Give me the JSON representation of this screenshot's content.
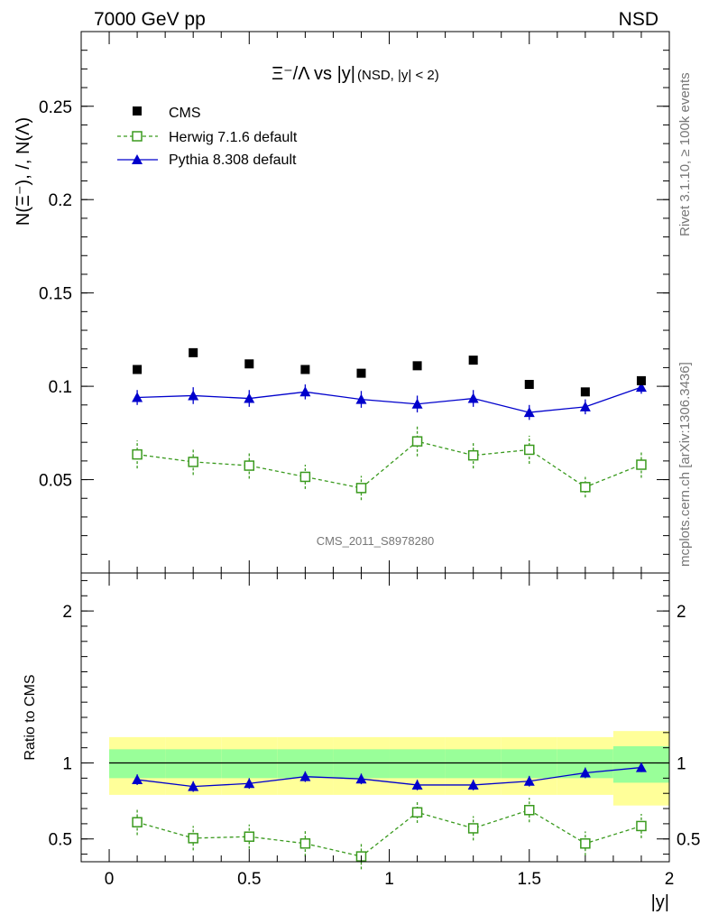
{
  "header": {
    "left": "7000 GeV pp",
    "right": "NSD"
  },
  "side": {
    "rivet": "Rivet 3.1.10, ≥ 100k events",
    "mcplots": "mcplots.cern.ch [arXiv:1306.3436]"
  },
  "watermark": "CMS_2011_S8978280",
  "chart_data": [
    {
      "type": "scatter",
      "title": "Ξ⁻/Λ vs |y|",
      "title_suffix": "(NSD, |y| < 2)",
      "ylabel": "N(Ξ⁻), /, N(Λ)",
      "xlim": [
        -0.1,
        2.0
      ],
      "ylim": [
        0.0,
        0.29
      ],
      "yticks": [
        {
          "v": 0.05,
          "l": "0.05"
        },
        {
          "v": 0.1,
          "l": "0.1"
        },
        {
          "v": 0.15,
          "l": "0.15"
        },
        {
          "v": 0.2,
          "l": "0.2"
        },
        {
          "v": 0.25,
          "l": "0.25"
        }
      ],
      "x": [
        0.1,
        0.3,
        0.5,
        0.7,
        0.9,
        1.1,
        1.3,
        1.5,
        1.7,
        1.9
      ],
      "legend_position": "top-left",
      "series": [
        {
          "name": "CMS",
          "color": "#000000",
          "marker": "square-filled",
          "values": [
            0.109,
            0.118,
            0.112,
            0.109,
            0.107,
            0.111,
            0.114,
            0.101,
            0.097,
            0.103
          ]
        },
        {
          "name": "Herwig 7.1.6 default",
          "color": "#3a9a1e",
          "marker": "square-open",
          "dashed": true,
          "values": [
            0.0635,
            0.0595,
            0.0575,
            0.0515,
            0.0455,
            0.0705,
            0.063,
            0.066,
            0.046,
            0.058
          ],
          "errors": [
            0.0075,
            0.007,
            0.007,
            0.0065,
            0.0065,
            0.008,
            0.007,
            0.0075,
            0.0055,
            0.007
          ]
        },
        {
          "name": "Pythia 8.308 default",
          "color": "#0000cc",
          "marker": "triangle-filled",
          "values": [
            0.094,
            0.095,
            0.0935,
            0.097,
            0.093,
            0.0905,
            0.0935,
            0.086,
            0.089,
            0.0995
          ],
          "errors": [
            0.004,
            0.0045,
            0.0045,
            0.004,
            0.0045,
            0.0045,
            0.0045,
            0.004,
            0.004,
            0.0035
          ]
        }
      ]
    },
    {
      "type": "scatter",
      "xlabel": "|y|",
      "ylabel": "Ratio to CMS",
      "xlim": [
        -0.1,
        2.0
      ],
      "ylim": [
        0.35,
        2.25
      ],
      "xticks": [
        {
          "v": 0,
          "l": "0"
        },
        {
          "v": 0.5,
          "l": "0.5"
        },
        {
          "v": 1,
          "l": "1"
        },
        {
          "v": 1.5,
          "l": "1.5"
        },
        {
          "v": 2,
          "l": "2"
        }
      ],
      "yticks": [
        {
          "v": 0.5,
          "l": "0.5"
        },
        {
          "v": 1,
          "l": "1"
        },
        {
          "v": 2,
          "l": "2"
        }
      ],
      "x": [
        0.1,
        0.3,
        0.5,
        0.7,
        0.9,
        1.1,
        1.3,
        1.5,
        1.7,
        1.9
      ],
      "bands": {
        "edges": [
          0.0,
          0.2,
          0.4,
          0.6,
          0.8,
          1.0,
          1.2,
          1.4,
          1.6,
          1.8,
          2.0
        ],
        "inner_color": "#99ff99",
        "outer_color": "#ffff99",
        "inner_lo": [
          0.9,
          0.9,
          0.9,
          0.9,
          0.9,
          0.9,
          0.9,
          0.9,
          0.9,
          0.87
        ],
        "inner_hi": [
          1.09,
          1.09,
          1.09,
          1.09,
          1.09,
          1.09,
          1.09,
          1.09,
          1.09,
          1.11
        ],
        "outer_lo": [
          0.79,
          0.79,
          0.79,
          0.79,
          0.79,
          0.79,
          0.79,
          0.79,
          0.79,
          0.72
        ],
        "outer_hi": [
          1.17,
          1.17,
          1.17,
          1.17,
          1.17,
          1.17,
          1.17,
          1.17,
          1.17,
          1.21
        ]
      },
      "series": [
        {
          "name": "Herwig 7.1.6 default",
          "color": "#3a9a1e",
          "marker": "square-open",
          "dashed": true,
          "values": [
            0.61,
            0.505,
            0.515,
            0.47,
            0.385,
            0.675,
            0.57,
            0.69,
            0.47,
            0.585
          ],
          "errors": [
            0.085,
            0.08,
            0.08,
            0.085,
            0.085,
            0.07,
            0.08,
            0.08,
            0.08,
            0.08
          ]
        },
        {
          "name": "Pythia 8.308 default",
          "color": "#0000cc",
          "marker": "triangle-filled",
          "values": [
            0.89,
            0.845,
            0.865,
            0.91,
            0.895,
            0.855,
            0.855,
            0.88,
            0.935,
            0.97
          ],
          "errors": [
            0.035,
            0.035,
            0.035,
            0.035,
            0.035,
            0.035,
            0.035,
            0.035,
            0.035,
            0.03
          ]
        }
      ]
    }
  ]
}
